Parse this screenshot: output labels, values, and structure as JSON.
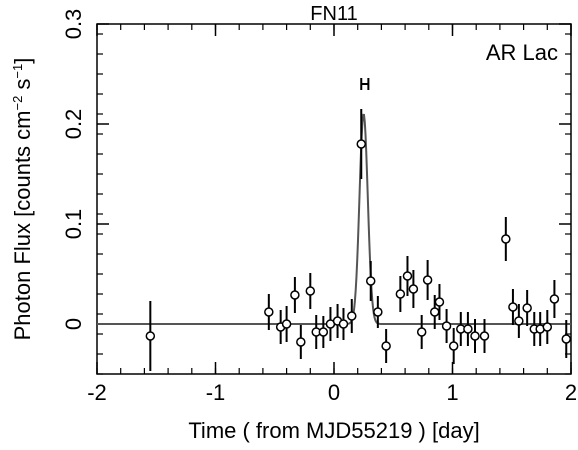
{
  "chart_data": {
    "type": "scatter",
    "title": "FN11",
    "annotation": "AR Lac",
    "xlabel": "Time ( from MJD55219 ) [day]",
    "ylabel": "Photon Flux [counts cm",
    "ylabel_unit_sup1": "−2",
    "ylabel_unit_mid": " s",
    "ylabel_unit_sup2": "−1",
    "ylabel_unit_end": "]",
    "xlim": [
      -2,
      2
    ],
    "ylim": [
      -0.05,
      0.3
    ],
    "x_ticks": [
      -2,
      -1,
      0,
      1,
      2
    ],
    "x_tick_labels": [
      "-2",
      "-1",
      "0",
      "1",
      "2"
    ],
    "y_ticks": [
      0,
      0.1,
      0.2,
      0.3
    ],
    "y_tick_labels": [
      "0",
      "0.1",
      "0.2",
      "0.3"
    ],
    "grid": false,
    "marker_color": "#000000",
    "model_color": "#555555",
    "points": [
      {
        "x": -1.55,
        "y": -0.012,
        "err": 0.035
      },
      {
        "x": -0.55,
        "y": 0.012,
        "err": 0.018
      },
      {
        "x": -0.45,
        "y": -0.003,
        "err": 0.017
      },
      {
        "x": -0.4,
        "y": 0.0,
        "err": 0.018
      },
      {
        "x": -0.33,
        "y": 0.029,
        "err": 0.018
      },
      {
        "x": -0.28,
        "y": -0.018,
        "err": 0.017
      },
      {
        "x": -0.2,
        "y": 0.033,
        "err": 0.018
      },
      {
        "x": -0.15,
        "y": -0.008,
        "err": 0.017
      },
      {
        "x": -0.09,
        "y": -0.008,
        "err": 0.016
      },
      {
        "x": -0.03,
        "y": 0.0,
        "err": 0.017
      },
      {
        "x": 0.03,
        "y": 0.003,
        "err": 0.017
      },
      {
        "x": 0.08,
        "y": 0.0,
        "err": 0.016
      },
      {
        "x": 0.15,
        "y": 0.008,
        "err": 0.017
      },
      {
        "x": 0.23,
        "y": 0.18,
        "err": 0.035
      },
      {
        "x": 0.31,
        "y": 0.043,
        "err": 0.02
      },
      {
        "x": 0.37,
        "y": 0.012,
        "err": 0.016
      },
      {
        "x": 0.44,
        "y": -0.022,
        "err": 0.017
      },
      {
        "x": 0.56,
        "y": 0.03,
        "err": 0.018
      },
      {
        "x": 0.62,
        "y": 0.048,
        "err": 0.02
      },
      {
        "x": 0.67,
        "y": 0.035,
        "err": 0.019
      },
      {
        "x": 0.74,
        "y": -0.008,
        "err": 0.017
      },
      {
        "x": 0.79,
        "y": 0.044,
        "err": 0.02
      },
      {
        "x": 0.85,
        "y": 0.012,
        "err": 0.017
      },
      {
        "x": 0.89,
        "y": 0.022,
        "err": 0.018
      },
      {
        "x": 0.95,
        "y": -0.002,
        "err": 0.017
      },
      {
        "x": 1.01,
        "y": -0.022,
        "err": 0.018
      },
      {
        "x": 1.07,
        "y": -0.005,
        "err": 0.017
      },
      {
        "x": 1.13,
        "y": -0.005,
        "err": 0.017
      },
      {
        "x": 1.19,
        "y": -0.012,
        "err": 0.017
      },
      {
        "x": 1.27,
        "y": -0.012,
        "err": 0.017
      },
      {
        "x": 1.45,
        "y": 0.085,
        "err": 0.022
      },
      {
        "x": 1.51,
        "y": 0.017,
        "err": 0.018
      },
      {
        "x": 1.56,
        "y": 0.003,
        "err": 0.017
      },
      {
        "x": 1.63,
        "y": 0.016,
        "err": 0.018
      },
      {
        "x": 1.69,
        "y": -0.005,
        "err": 0.017
      },
      {
        "x": 1.74,
        "y": -0.005,
        "err": 0.017
      },
      {
        "x": 1.8,
        "y": -0.003,
        "err": 0.017
      },
      {
        "x": 1.86,
        "y": 0.025,
        "err": 0.019
      },
      {
        "x": 1.96,
        "y": -0.015,
        "err": 0.019
      }
    ],
    "flare_interval": {
      "center": 0.26,
      "half_width": 0.03,
      "y": 0.24
    },
    "model": {
      "baseline": 0.0,
      "peak_x": 0.25,
      "peak_y": 0.21,
      "sigma": 0.035
    }
  }
}
